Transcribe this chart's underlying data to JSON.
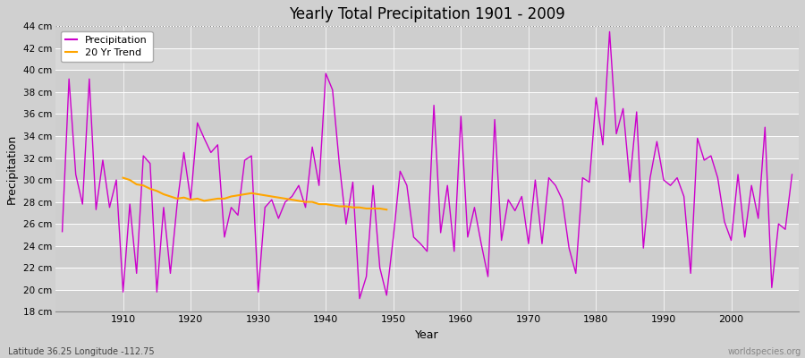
{
  "title": "Yearly Total Precipitation 1901 - 2009",
  "xlabel": "Year",
  "ylabel": "Precipitation",
  "subtitle": "Latitude 36.25 Longitude -112.75",
  "watermark": "worldspecies.org",
  "ylim": [
    18,
    44
  ],
  "ytick_step": 2,
  "bg_color": "#d8d8d8",
  "plot_bg_color": "#d8d8d8",
  "stripe_light": "#dcdcdc",
  "stripe_dark": "#c8c8c8",
  "precip_color": "#cc00cc",
  "trend_color": "#FFA500",
  "top_line_y": 44,
  "years": [
    1901,
    1902,
    1903,
    1904,
    1905,
    1906,
    1907,
    1908,
    1909,
    1910,
    1911,
    1912,
    1913,
    1914,
    1915,
    1916,
    1917,
    1918,
    1919,
    1920,
    1921,
    1922,
    1923,
    1924,
    1925,
    1926,
    1927,
    1928,
    1929,
    1930,
    1931,
    1932,
    1933,
    1934,
    1935,
    1936,
    1937,
    1938,
    1939,
    1940,
    1941,
    1942,
    1943,
    1944,
    1945,
    1946,
    1947,
    1948,
    1949,
    1950,
    1951,
    1952,
    1953,
    1954,
    1955,
    1956,
    1957,
    1958,
    1959,
    1960,
    1961,
    1962,
    1963,
    1964,
    1965,
    1966,
    1967,
    1968,
    1969,
    1970,
    1971,
    1972,
    1973,
    1974,
    1975,
    1976,
    1977,
    1978,
    1979,
    1980,
    1981,
    1982,
    1983,
    1984,
    1985,
    1986,
    1987,
    1988,
    1989,
    1990,
    1991,
    1992,
    1993,
    1994,
    1995,
    1996,
    1997,
    1998,
    1999,
    2000,
    2001,
    2002,
    2003,
    2004,
    2005,
    2006,
    2007,
    2008,
    2009
  ],
  "precip": [
    25.3,
    39.2,
    30.5,
    27.8,
    39.2,
    27.3,
    31.8,
    27.5,
    30.0,
    19.8,
    27.8,
    21.5,
    32.2,
    31.5,
    19.8,
    27.5,
    21.5,
    27.8,
    32.5,
    28.2,
    35.2,
    33.8,
    32.5,
    33.2,
    24.8,
    27.5,
    26.8,
    31.8,
    32.2,
    19.8,
    27.5,
    28.2,
    26.5,
    28.0,
    28.5,
    29.5,
    27.5,
    33.0,
    29.5,
    39.7,
    38.2,
    31.5,
    26.0,
    29.8,
    19.2,
    21.2,
    29.5,
    22.0,
    19.5,
    24.8,
    30.8,
    29.5,
    24.8,
    24.2,
    23.5,
    36.8,
    25.2,
    29.5,
    23.5,
    35.8,
    24.8,
    27.5,
    24.2,
    21.2,
    35.5,
    24.5,
    28.2,
    27.2,
    28.5,
    24.2,
    30.0,
    24.2,
    30.2,
    29.5,
    28.2,
    23.8,
    21.5,
    30.2,
    29.8,
    37.5,
    33.2,
    43.5,
    34.2,
    36.5,
    29.8,
    36.2,
    23.8,
    30.2,
    33.5,
    30.0,
    29.5,
    30.2,
    28.5,
    21.5,
    33.8,
    31.8,
    32.2,
    30.2,
    26.2,
    24.5,
    30.5,
    24.8,
    29.5,
    26.5,
    34.8,
    20.2,
    26.0,
    25.5,
    30.5
  ],
  "trend_years": [
    1910,
    1911,
    1912,
    1913,
    1914,
    1915,
    1916,
    1917,
    1918,
    1919,
    1920,
    1921,
    1922,
    1923,
    1924,
    1925,
    1926,
    1927,
    1928,
    1929,
    1930,
    1931,
    1932,
    1933,
    1934,
    1935,
    1936,
    1937,
    1938,
    1939,
    1940,
    1941,
    1942,
    1943,
    1944,
    1945,
    1946,
    1947,
    1948,
    1949
  ],
  "trend": [
    30.2,
    30.0,
    29.6,
    29.5,
    29.2,
    29.0,
    28.7,
    28.5,
    28.3,
    28.4,
    28.2,
    28.3,
    28.1,
    28.2,
    28.3,
    28.3,
    28.5,
    28.6,
    28.7,
    28.8,
    28.7,
    28.6,
    28.5,
    28.4,
    28.3,
    28.2,
    28.1,
    28.0,
    28.0,
    27.8,
    27.8,
    27.7,
    27.6,
    27.6,
    27.5,
    27.5,
    27.4,
    27.4,
    27.4,
    27.3
  ],
  "xlim": [
    1900,
    2010
  ],
  "xticks": [
    1910,
    1920,
    1930,
    1940,
    1950,
    1960,
    1970,
    1980,
    1990,
    2000
  ],
  "yticks": [
    18,
    20,
    22,
    24,
    26,
    28,
    30,
    32,
    34,
    36,
    38,
    40,
    42,
    44
  ]
}
